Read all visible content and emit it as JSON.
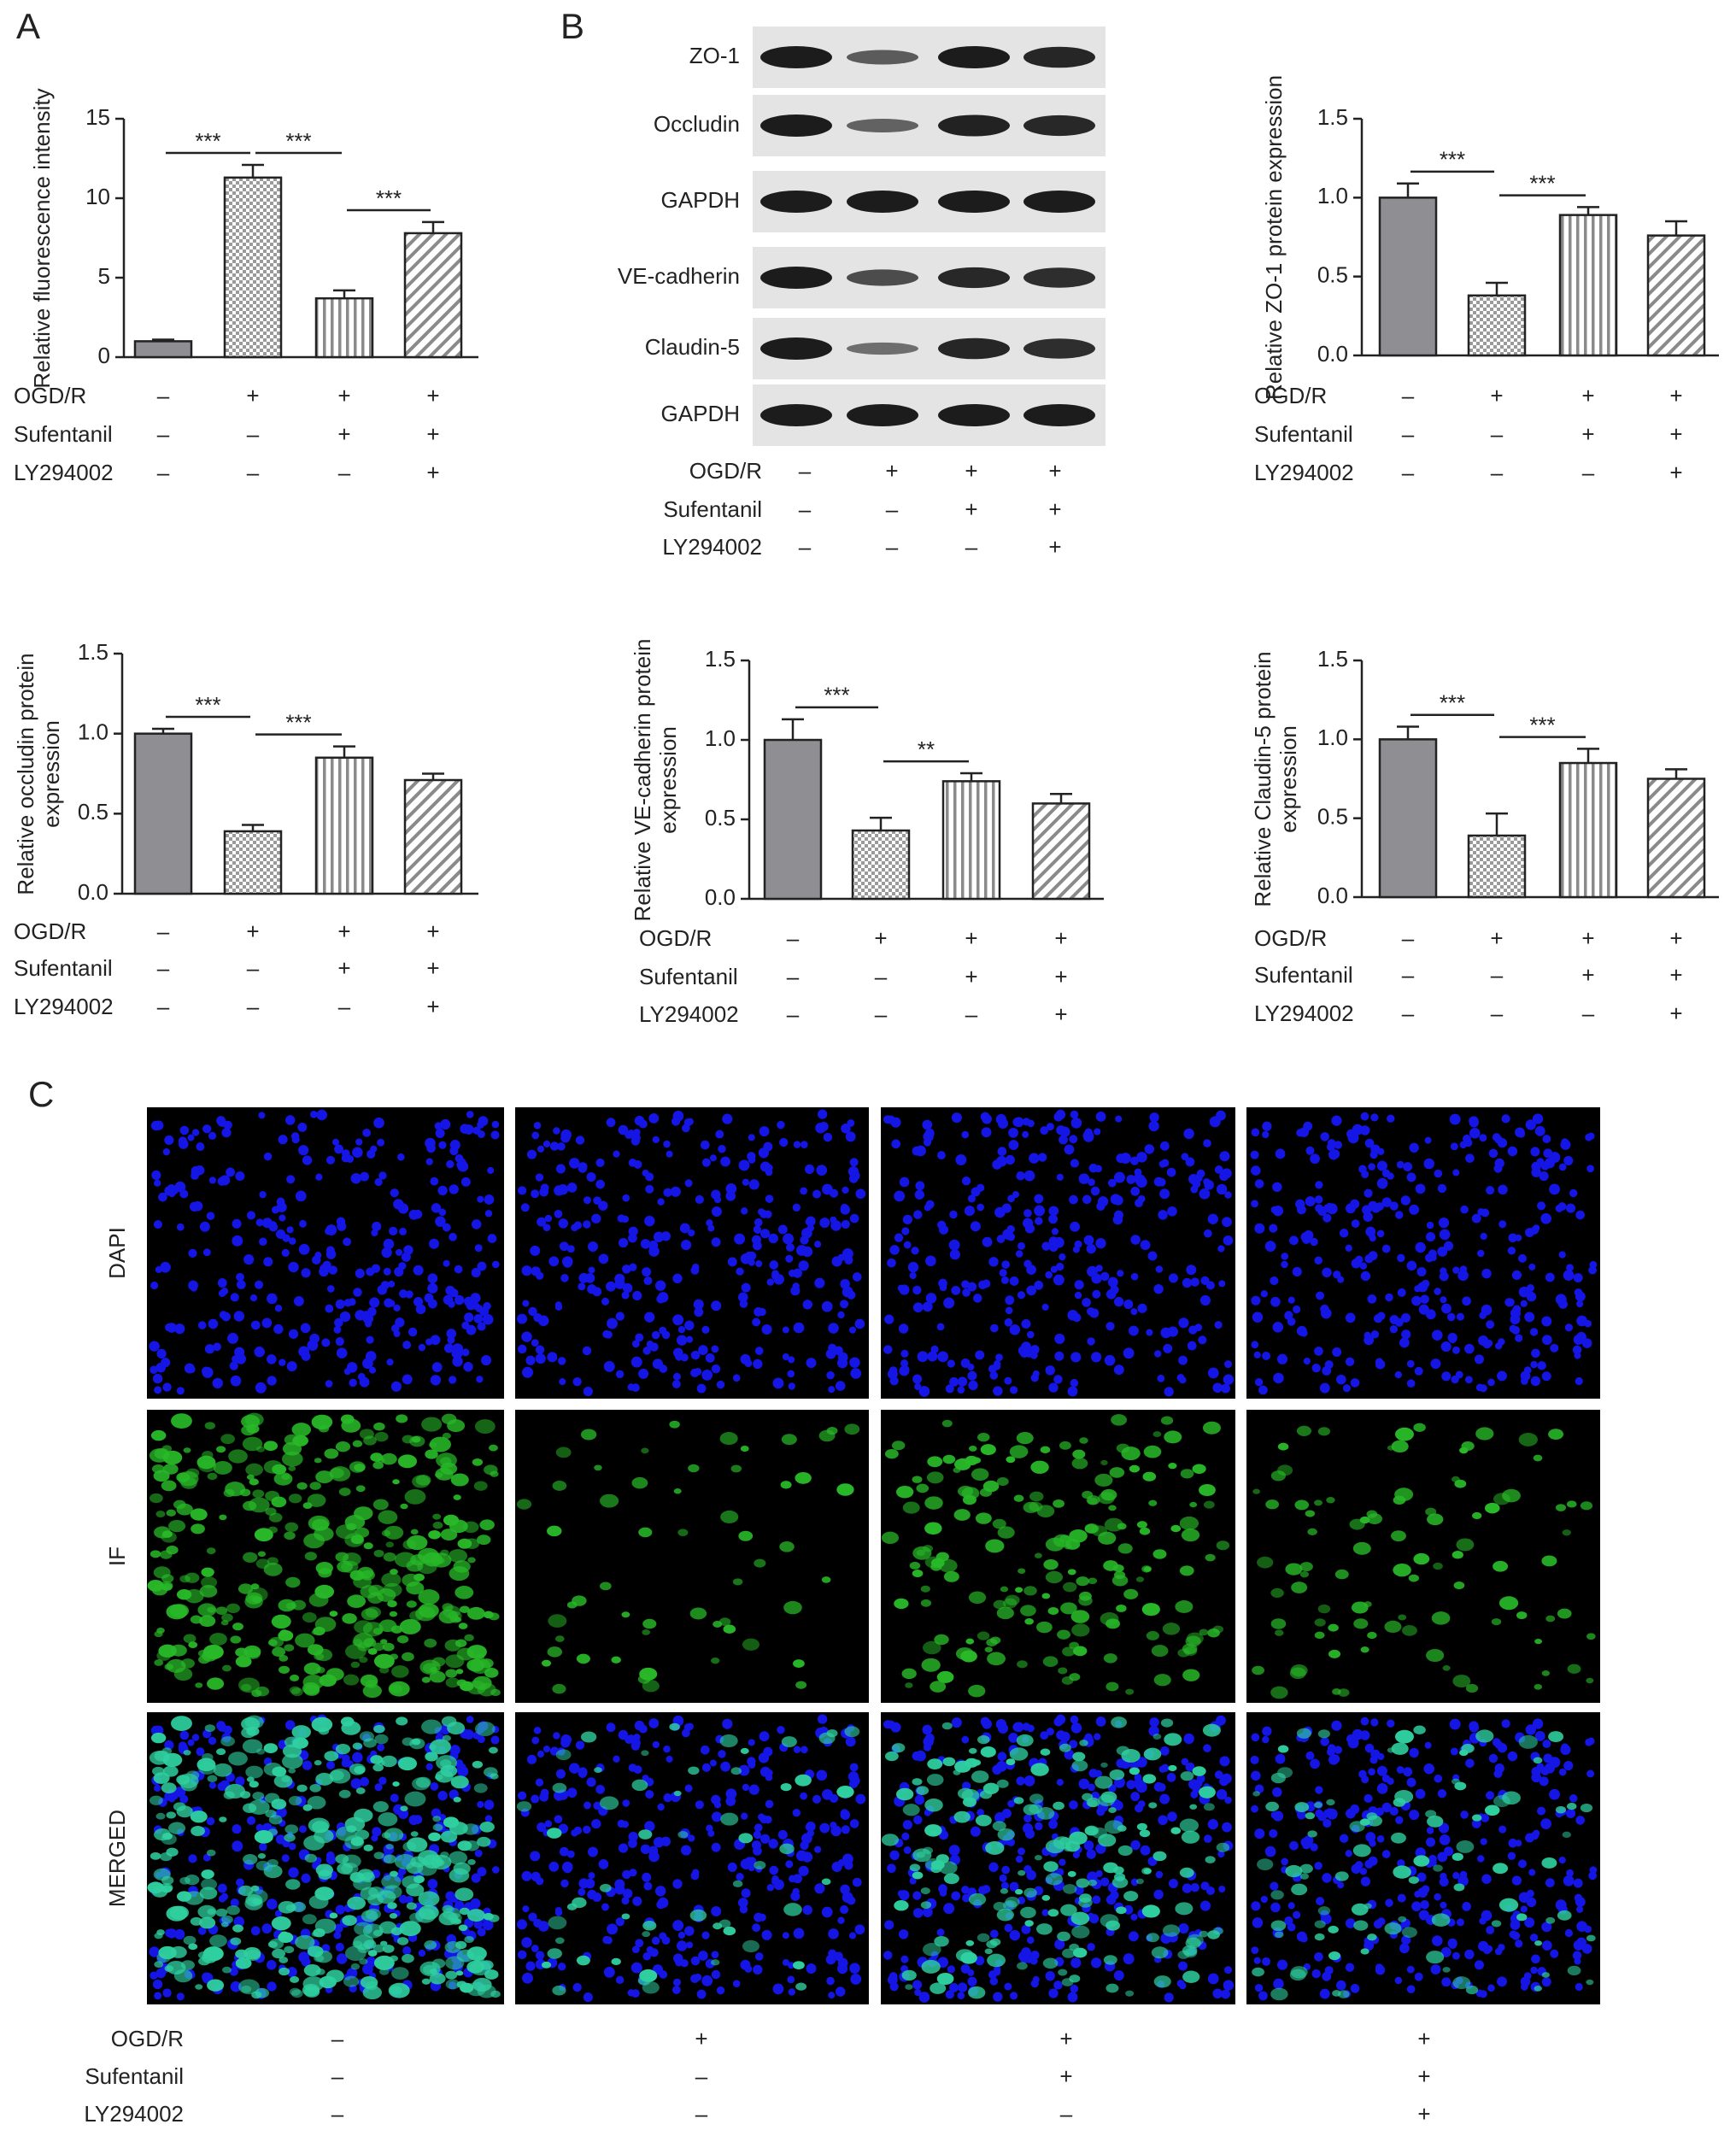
{
  "panel_labels": [
    "A",
    "B",
    "C"
  ],
  "conditions": {
    "rows": [
      "OGD/R",
      "Sufentanil",
      "LY294002"
    ],
    "signs": [
      [
        "–",
        "+",
        "+",
        "+"
      ],
      [
        "–",
        "–",
        "+",
        "+"
      ],
      [
        "–",
        "–",
        "–",
        "+"
      ]
    ]
  },
  "blot": {
    "bands": [
      "ZO-1",
      "Occludin",
      "GAPDH",
      "VE-cadherin",
      "Claudin-5",
      "GAPDH"
    ]
  },
  "micrographs": {
    "rows": [
      "DAPI",
      "IF",
      "MERGED"
    ]
  },
  "chart_data": [
    {
      "type": "bar",
      "ylabel": "Relative fluorescence intensity",
      "values": [
        1.0,
        11.3,
        3.7,
        7.8
      ],
      "errors": [
        0.1,
        0.8,
        0.5,
        0.7
      ],
      "ylim": [
        0,
        15
      ],
      "yticks": [
        0,
        5,
        10,
        15
      ],
      "color": "#8e8e93",
      "fills": [
        "solid",
        "checker",
        "vertical",
        "diagonal"
      ],
      "annotations": [
        {
          "label": "***",
          "between": [
            0,
            1
          ]
        },
        {
          "label": "***",
          "between": [
            1,
            2
          ]
        },
        {
          "label": "***",
          "between": [
            2,
            3
          ]
        }
      ]
    },
    {
      "type": "bar",
      "ylabel": "Relative ZO-1 protein expression",
      "values": [
        1.0,
        0.38,
        0.89,
        0.76
      ],
      "errors": [
        0.09,
        0.08,
        0.05,
        0.09
      ],
      "ylim": [
        0,
        1.5
      ],
      "yticks": [
        {
          "value": 0,
          "label": "0.0"
        },
        0.5,
        {
          "value": 1,
          "label": "1.0"
        },
        1.5
      ],
      "color": "#8e8e93",
      "fills": [
        "solid",
        "checker",
        "vertical",
        "diagonal"
      ],
      "annotations": [
        {
          "label": "***",
          "between": [
            0,
            1
          ]
        },
        {
          "label": "***",
          "between": [
            1,
            2
          ]
        }
      ]
    },
    {
      "type": "bar",
      "ylabel": "Relative occludin protein expression",
      "values": [
        1.0,
        0.39,
        0.85,
        0.71
      ],
      "errors": [
        0.03,
        0.04,
        0.07,
        0.04
      ],
      "ylim": [
        0,
        1.5
      ],
      "yticks": [
        {
          "value": 0,
          "label": "0.0"
        },
        0.5,
        {
          "value": 1,
          "label": "1.0"
        },
        1.5
      ],
      "color": "#8e8e93",
      "fills": [
        "solid",
        "checker",
        "vertical",
        "diagonal"
      ],
      "annotations": [
        {
          "label": "***",
          "between": [
            0,
            1
          ]
        },
        {
          "label": "***",
          "between": [
            1,
            2
          ]
        }
      ]
    },
    {
      "type": "bar",
      "ylabel": "Relative VE-cadherin protein expression",
      "values": [
        1.0,
        0.43,
        0.74,
        0.6
      ],
      "errors": [
        0.13,
        0.08,
        0.05,
        0.06
      ],
      "ylim": [
        0,
        1.5
      ],
      "yticks": [
        {
          "value": 0,
          "label": "0.0"
        },
        0.5,
        {
          "value": 1,
          "label": "1.0"
        },
        1.5
      ],
      "color": "#8e8e93",
      "fills": [
        "solid",
        "checker",
        "vertical",
        "diagonal"
      ],
      "annotations": [
        {
          "label": "***",
          "between": [
            0,
            1
          ]
        },
        {
          "label": "**",
          "between": [
            1,
            2
          ]
        }
      ]
    },
    {
      "type": "bar",
      "ylabel": "Relative Claudin-5 protein expression",
      "values": [
        1.0,
        0.39,
        0.85,
        0.75
      ],
      "errors": [
        0.08,
        0.14,
        0.09,
        0.06
      ],
      "ylim": [
        0,
        1.5
      ],
      "yticks": [
        {
          "value": 0,
          "label": "0.0"
        },
        0.5,
        {
          "value": 1,
          "label": "1.0"
        },
        1.5
      ],
      "color": "#8e8e93",
      "fills": [
        "solid",
        "checker",
        "vertical",
        "diagonal"
      ],
      "annotations": [
        {
          "label": "***",
          "between": [
            0,
            1
          ]
        },
        {
          "label": "***",
          "between": [
            1,
            2
          ]
        }
      ]
    }
  ]
}
